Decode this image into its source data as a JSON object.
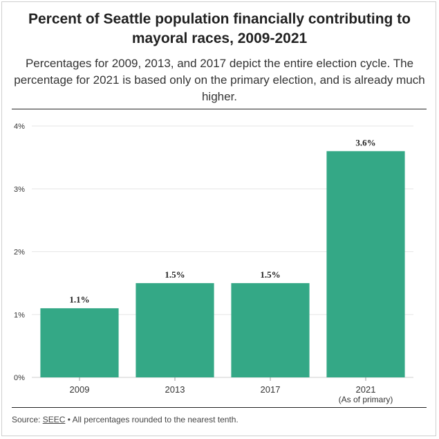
{
  "title": "Percent of Seattle population financially contributing to mayoral races, 2009-2021",
  "subtitle": "Percentages for 2009, 2013, and 2017 depict the entire election cycle. The percentage for 2021 is based only on the primary election, and is already much higher.",
  "footer": {
    "source_label": "Source:",
    "source_link": "SEEC",
    "note": " • All percentages rounded to the nearest tenth."
  },
  "colors": {
    "bar": "#34a886",
    "grid": "#e6e6e6",
    "axis_text": "#333333"
  },
  "chart_data": {
    "type": "bar",
    "categories": [
      "2009",
      "2013",
      "2017",
      "2021"
    ],
    "category_sublabels": [
      "",
      "",
      "",
      "(As of primary)"
    ],
    "values": [
      1.1,
      1.5,
      1.5,
      3.6
    ],
    "data_labels": [
      "1.1%",
      "1.5%",
      "1.5%",
      "3.6%"
    ],
    "ylim": [
      0,
      4
    ],
    "yticks": [
      0,
      1,
      2,
      3,
      4
    ],
    "ytick_labels": [
      "0%",
      "1%",
      "2%",
      "3%",
      "4%"
    ],
    "grid": true
  }
}
